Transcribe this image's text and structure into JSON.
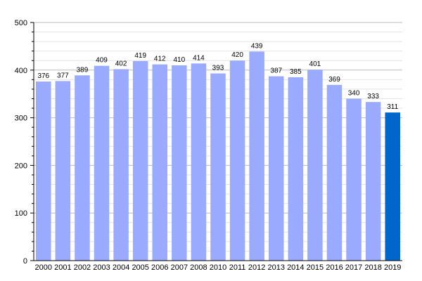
{
  "chart_data": {
    "type": "bar",
    "title": "",
    "xlabel": "",
    "ylabel": "",
    "categories": [
      "2000",
      "2001",
      "2002",
      "2003",
      "2004",
      "2005",
      "2006",
      "2007",
      "2008",
      "2010",
      "2011",
      "2012",
      "2013",
      "2014",
      "2015",
      "2016",
      "2017",
      "2018",
      "2019"
    ],
    "values": [
      376,
      377,
      389,
      409,
      402,
      419,
      412,
      410,
      414,
      393,
      420,
      439,
      387,
      385,
      401,
      369,
      340,
      333,
      311
    ],
    "value_labels": [
      "376",
      "377",
      "389",
      "409",
      "402",
      "419",
      "412",
      "410",
      "414",
      "393",
      "420",
      "439",
      "387",
      "385",
      "401",
      "369",
      "340",
      "333",
      "311"
    ],
    "highlight_category": "2019",
    "ylim": [
      0,
      500
    ],
    "yticks": [
      0,
      100,
      200,
      300,
      400,
      500
    ],
    "ytick_labels": [
      "0",
      "100",
      "200",
      "300",
      "400",
      "500"
    ],
    "minor_gridlines_step": 20,
    "grid": true,
    "legend": "none",
    "colors": {
      "bar": "#99aaff",
      "bar_highlight": "#0066cc",
      "grid_major": "#bbbbbb",
      "grid_minor": "#e4e4e4",
      "axis": "#000000"
    }
  }
}
